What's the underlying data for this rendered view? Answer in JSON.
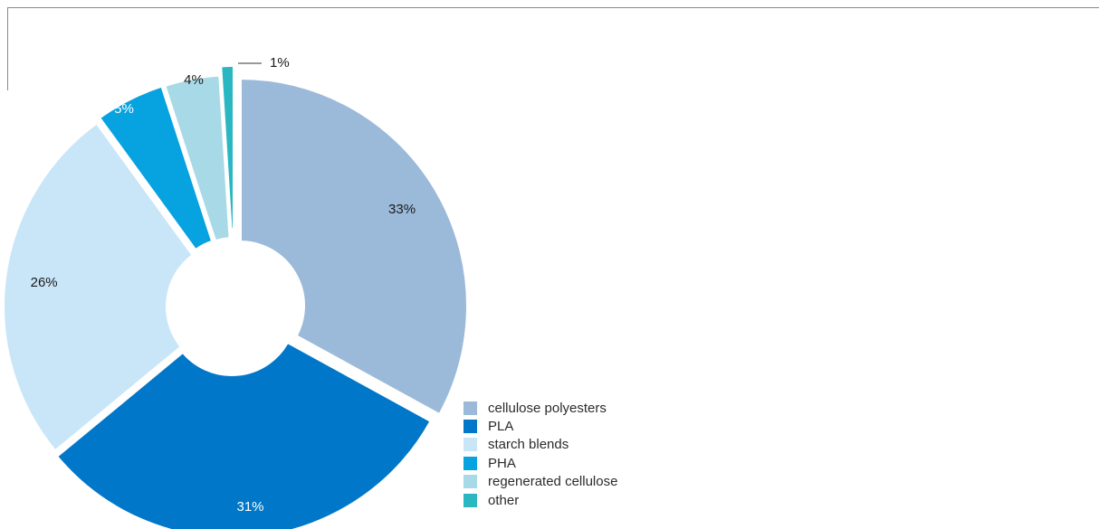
{
  "chart_data": {
    "type": "pie",
    "style": "donut-exploded",
    "title": "",
    "legend_position": "bottom-center",
    "series": [
      {
        "name": "cellulose polyesters",
        "value": 33,
        "label": "33%",
        "color": "#9bbad9",
        "label_color": "#1a1a1a"
      },
      {
        "name": "PLA",
        "value": 31,
        "label": "31%",
        "color": "#0077c8",
        "label_color": "#ffffff"
      },
      {
        "name": "starch blends",
        "value": 26,
        "label": "26%",
        "color": "#c9e6f8",
        "label_color": "#1a1a1a"
      },
      {
        "name": "PHA",
        "value": 5,
        "label": "5%",
        "color": "#06a3e0",
        "label_color": "#ffffff"
      },
      {
        "name": "regenerated cellulose",
        "value": 4,
        "label": "4%",
        "color": "#a7d9e6",
        "label_color": "#1a1a1a"
      },
      {
        "name": "other",
        "value": 1,
        "label": "1%",
        "color": "#2ab7c2",
        "label_color": "#1a1a1a"
      }
    ]
  }
}
